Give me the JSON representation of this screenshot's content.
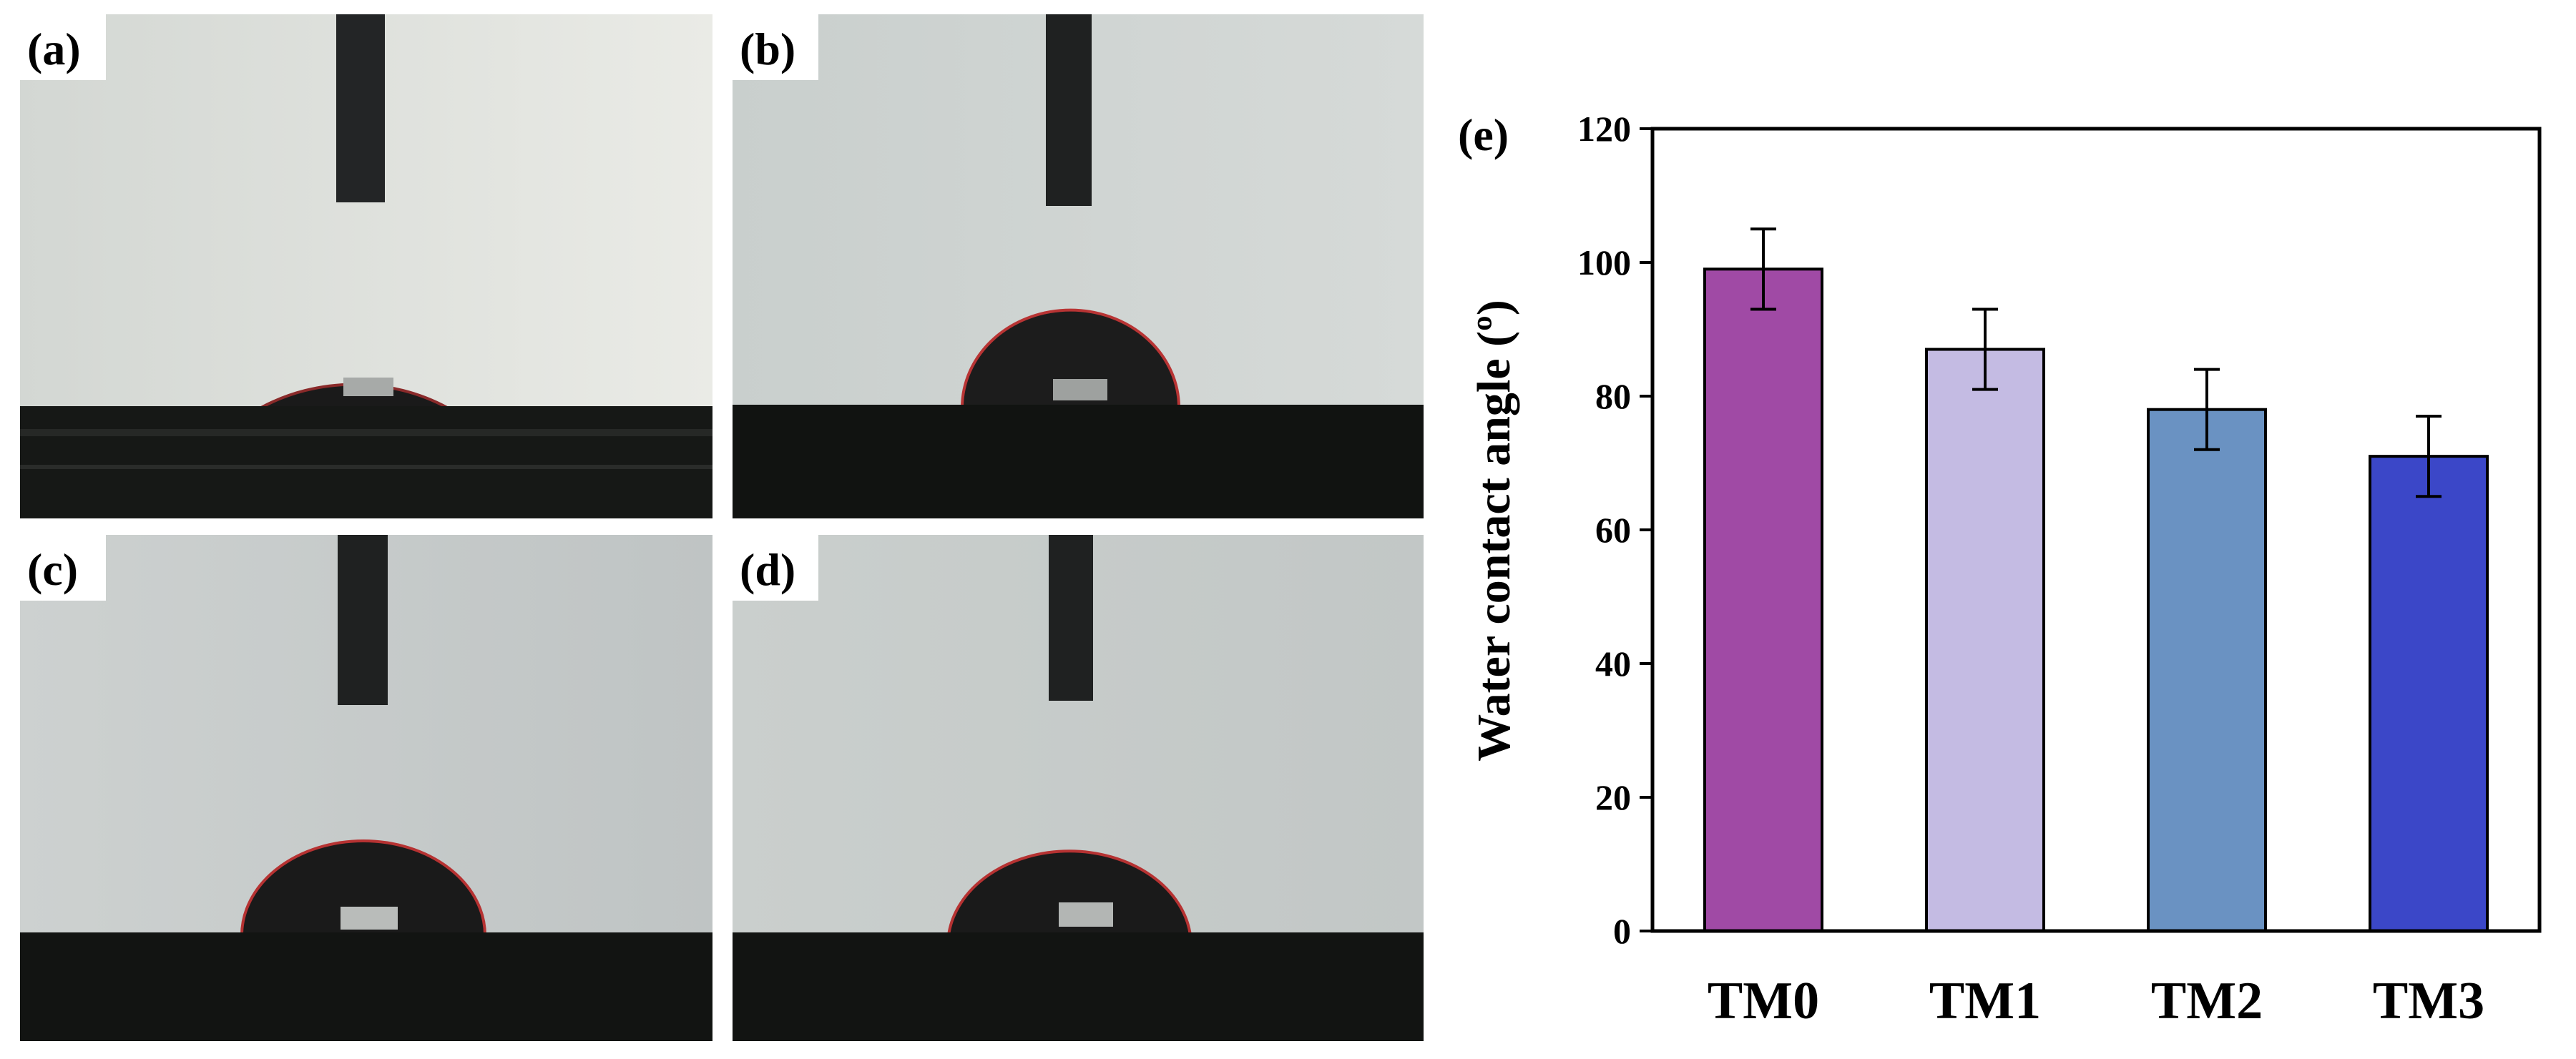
{
  "panels": [
    {
      "label": "(a)"
    },
    {
      "label": "(b)"
    },
    {
      "label": "(c)"
    },
    {
      "label": "(d)"
    }
  ],
  "chart_data": {
    "type": "bar",
    "panel_label": "(e)",
    "title": "",
    "xlabel": "",
    "ylabel": "Water contact angle (º)",
    "ylim": [
      0,
      120
    ],
    "yticks": [
      0,
      20,
      40,
      60,
      80,
      100,
      120
    ],
    "categories": [
      "TM0",
      "TM1",
      "TM2",
      "TM3"
    ],
    "values": [
      99,
      87,
      78,
      71
    ],
    "errors": [
      6,
      6,
      6,
      6
    ],
    "colors": [
      "#a04aa5",
      "#c4bbe3",
      "#6a92c2",
      "#3b47c8"
    ],
    "grid": false,
    "legend": "none"
  }
}
